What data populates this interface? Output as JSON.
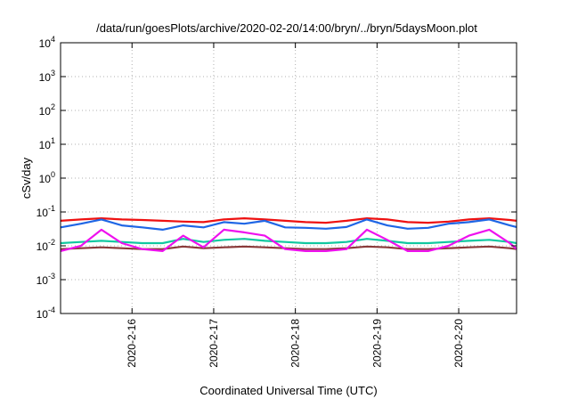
{
  "chart_data": {
    "type": "line",
    "title": "/data/run/goesPlots/archive/2020-02-20/14:00/bryn/../bryn/5daysMoon.plot",
    "xlabel": "Coordinated Universal Time (UTC)",
    "ylabel": "cSv/day",
    "y_scale": "log",
    "ylim": [
      0.0001,
      10000
    ],
    "xlim": [
      "2020-02-15 03:00",
      "2020-02-20 17:00"
    ],
    "grid": true,
    "legend": "none",
    "y_ticks": [
      {
        "base": "10",
        "exp": "-4"
      },
      {
        "base": "10",
        "exp": "-3"
      },
      {
        "base": "10",
        "exp": "-2"
      },
      {
        "base": "10",
        "exp": "-1"
      },
      {
        "base": "10",
        "exp": "0"
      },
      {
        "base": "10",
        "exp": "1"
      },
      {
        "base": "10",
        "exp": "2"
      },
      {
        "base": "10",
        "exp": "3"
      },
      {
        "base": "10",
        "exp": "4"
      }
    ],
    "x_ticks": [
      {
        "label": "2020-2-16",
        "at": "2020-02-16 00:00"
      },
      {
        "label": "2020-2-17",
        "at": "2020-02-17 00:00"
      },
      {
        "label": "2020-2-18",
        "at": "2020-02-18 00:00"
      },
      {
        "label": "2020-2-19",
        "at": "2020-02-19 00:00"
      },
      {
        "label": "2020-2-20",
        "at": "2020-02-20 00:00"
      }
    ],
    "series": [
      {
        "color": "#ee1111",
        "x": [
          "2020-02-15 03:00",
          "2020-02-15 09:00",
          "2020-02-15 15:00",
          "2020-02-15 21:00",
          "2020-02-16 03:00",
          "2020-02-16 09:00",
          "2020-02-16 15:00",
          "2020-02-16 21:00",
          "2020-02-17 03:00",
          "2020-02-17 09:00",
          "2020-02-17 15:00",
          "2020-02-17 21:00",
          "2020-02-18 03:00",
          "2020-02-18 09:00",
          "2020-02-18 15:00",
          "2020-02-18 21:00",
          "2020-02-19 03:00",
          "2020-02-19 09:00",
          "2020-02-19 15:00",
          "2020-02-19 21:00",
          "2020-02-20 03:00",
          "2020-02-20 09:00",
          "2020-02-20 15:00",
          "2020-02-20 17:00"
        ],
        "values": [
          0.055,
          0.06,
          0.065,
          0.06,
          0.058,
          0.055,
          0.052,
          0.05,
          0.06,
          0.065,
          0.06,
          0.055,
          0.05,
          0.048,
          0.055,
          0.065,
          0.06,
          0.05,
          0.048,
          0.052,
          0.06,
          0.065,
          0.058,
          0.055
        ]
      },
      {
        "color": "#1f66e5",
        "x": [
          "2020-02-15 03:00",
          "2020-02-15 09:00",
          "2020-02-15 15:00",
          "2020-02-15 21:00",
          "2020-02-16 03:00",
          "2020-02-16 09:00",
          "2020-02-16 15:00",
          "2020-02-16 21:00",
          "2020-02-17 03:00",
          "2020-02-17 09:00",
          "2020-02-17 15:00",
          "2020-02-17 21:00",
          "2020-02-18 03:00",
          "2020-02-18 09:00",
          "2020-02-18 15:00",
          "2020-02-18 21:00",
          "2020-02-19 03:00",
          "2020-02-19 09:00",
          "2020-02-19 15:00",
          "2020-02-19 21:00",
          "2020-02-20 03:00",
          "2020-02-20 09:00",
          "2020-02-20 15:00",
          "2020-02-20 17:00"
        ],
        "values": [
          0.035,
          0.045,
          0.06,
          0.04,
          0.035,
          0.03,
          0.04,
          0.035,
          0.05,
          0.045,
          0.055,
          0.035,
          0.034,
          0.032,
          0.036,
          0.06,
          0.04,
          0.032,
          0.034,
          0.045,
          0.05,
          0.06,
          0.04,
          0.036
        ]
      },
      {
        "color": "#11c8a0",
        "x": [
          "2020-02-15 03:00",
          "2020-02-15 09:00",
          "2020-02-15 15:00",
          "2020-02-15 21:00",
          "2020-02-16 03:00",
          "2020-02-16 09:00",
          "2020-02-16 15:00",
          "2020-02-16 21:00",
          "2020-02-17 03:00",
          "2020-02-17 09:00",
          "2020-02-17 15:00",
          "2020-02-17 21:00",
          "2020-02-18 03:00",
          "2020-02-18 09:00",
          "2020-02-18 15:00",
          "2020-02-18 21:00",
          "2020-02-19 03:00",
          "2020-02-19 09:00",
          "2020-02-19 15:00",
          "2020-02-19 21:00",
          "2020-02-20 03:00",
          "2020-02-20 09:00",
          "2020-02-20 15:00",
          "2020-02-20 17:00"
        ],
        "values": [
          0.012,
          0.013,
          0.014,
          0.013,
          0.012,
          0.012,
          0.016,
          0.013,
          0.015,
          0.016,
          0.014,
          0.013,
          0.012,
          0.012,
          0.013,
          0.016,
          0.014,
          0.012,
          0.012,
          0.013,
          0.014,
          0.015,
          0.013,
          0.012
        ]
      },
      {
        "color": "#8a3a3a",
        "x": [
          "2020-02-15 03:00",
          "2020-02-15 09:00",
          "2020-02-15 15:00",
          "2020-02-15 21:00",
          "2020-02-16 03:00",
          "2020-02-16 09:00",
          "2020-02-16 15:00",
          "2020-02-16 21:00",
          "2020-02-17 03:00",
          "2020-02-17 09:00",
          "2020-02-17 15:00",
          "2020-02-17 21:00",
          "2020-02-18 03:00",
          "2020-02-18 09:00",
          "2020-02-18 15:00",
          "2020-02-18 21:00",
          "2020-02-19 03:00",
          "2020-02-19 09:00",
          "2020-02-19 15:00",
          "2020-02-19 21:00",
          "2020-02-20 03:00",
          "2020-02-20 09:00",
          "2020-02-20 15:00",
          "2020-02-20 17:00"
        ],
        "values": [
          0.008,
          0.0085,
          0.009,
          0.0085,
          0.008,
          0.008,
          0.0095,
          0.0085,
          0.009,
          0.0095,
          0.009,
          0.0085,
          0.008,
          0.008,
          0.0085,
          0.0095,
          0.009,
          0.008,
          0.008,
          0.0085,
          0.009,
          0.0095,
          0.0085,
          0.008
        ]
      },
      {
        "color": "#ee11ee",
        "x": [
          "2020-02-15 03:00",
          "2020-02-15 09:00",
          "2020-02-15 15:00",
          "2020-02-15 21:00",
          "2020-02-16 03:00",
          "2020-02-16 09:00",
          "2020-02-16 15:00",
          "2020-02-16 21:00",
          "2020-02-17 03:00",
          "2020-02-17 09:00",
          "2020-02-17 15:00",
          "2020-02-17 21:00",
          "2020-02-18 03:00",
          "2020-02-18 09:00",
          "2020-02-18 15:00",
          "2020-02-18 21:00",
          "2020-02-19 03:00",
          "2020-02-19 09:00",
          "2020-02-19 15:00",
          "2020-02-19 21:00",
          "2020-02-20 03:00",
          "2020-02-20 09:00",
          "2020-02-20 15:00",
          "2020-02-20 17:00"
        ],
        "values": [
          0.007,
          0.01,
          0.03,
          0.012,
          0.008,
          0.007,
          0.02,
          0.009,
          0.03,
          0.025,
          0.02,
          0.008,
          0.007,
          0.007,
          0.008,
          0.03,
          0.015,
          0.007,
          0.007,
          0.01,
          0.02,
          0.03,
          0.012,
          0.008
        ]
      }
    ]
  }
}
